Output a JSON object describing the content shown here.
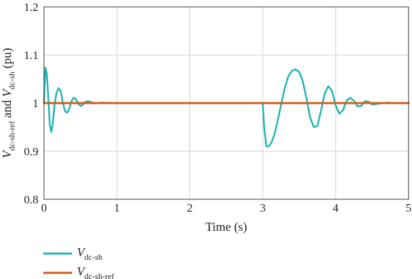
{
  "chart_data": {
    "type": "line",
    "title": "",
    "xlabel": "Time (s)",
    "ylabel": {
      "var1": "V",
      "sub1": "dc-sh-ref",
      "mid": " and ",
      "var2": "V",
      "sub2": "dc-sh",
      "unit": " (pu)"
    },
    "xlim": [
      0,
      5
    ],
    "ylim": [
      0.8,
      1.2
    ],
    "x_ticks": [
      "0",
      "1",
      "2",
      "3",
      "4",
      "5"
    ],
    "y_ticks": [
      "0.8",
      "0.9",
      "1",
      "1.1",
      "1.2"
    ],
    "grid": true,
    "legend_position": "below",
    "series": [
      {
        "name": "V_dc-sh",
        "legend_var": "V",
        "legend_sub": "dc-sh",
        "color": "#1fb5b5",
        "x": [
          0.0,
          0.02,
          0.04,
          0.06,
          0.08,
          0.1,
          0.12,
          0.14,
          0.17,
          0.2,
          0.23,
          0.26,
          0.29,
          0.32,
          0.35,
          0.38,
          0.41,
          0.44,
          0.47,
          0.5,
          0.53,
          0.56,
          0.6,
          0.65,
          0.7,
          0.75,
          0.8,
          0.9,
          1.0,
          1.5,
          2.0,
          2.5,
          2.98,
          3.0,
          3.02,
          3.05,
          3.08,
          3.12,
          3.16,
          3.2,
          3.25,
          3.3,
          3.35,
          3.4,
          3.45,
          3.5,
          3.55,
          3.6,
          3.65,
          3.7,
          3.75,
          3.8,
          3.85,
          3.9,
          3.95,
          4.0,
          4.05,
          4.1,
          4.15,
          4.2,
          4.25,
          4.3,
          4.35,
          4.4,
          4.45,
          4.5,
          4.6,
          4.7,
          4.8,
          5.0
        ],
        "y": [
          1.0,
          1.074,
          1.06,
          1.01,
          0.955,
          0.94,
          0.955,
          0.99,
          1.02,
          1.031,
          1.025,
          1.0,
          0.983,
          0.98,
          0.99,
          1.005,
          1.011,
          1.008,
          0.999,
          0.994,
          0.996,
          1.002,
          1.004,
          1.002,
          0.999,
          1.0,
          1.001,
          1.0,
          1.0,
          1.0,
          1.0,
          1.0,
          1.0,
          1.0,
          0.95,
          0.91,
          0.91,
          0.918,
          0.935,
          0.96,
          0.995,
          1.03,
          1.055,
          1.067,
          1.07,
          1.065,
          1.045,
          1.01,
          0.97,
          0.95,
          0.952,
          0.985,
          1.02,
          1.035,
          1.025,
          0.995,
          0.978,
          0.985,
          1.005,
          1.011,
          1.005,
          0.993,
          0.994,
          1.004,
          1.003,
          0.997,
          0.999,
          1.001,
          1.0,
          1.0
        ]
      },
      {
        "name": "V_dc-sh-ref",
        "legend_var": "V",
        "legend_sub": "dc-sh-ref",
        "color": "#d55d20",
        "x": [
          0,
          5
        ],
        "y": [
          1.0,
          1.0
        ]
      }
    ]
  }
}
